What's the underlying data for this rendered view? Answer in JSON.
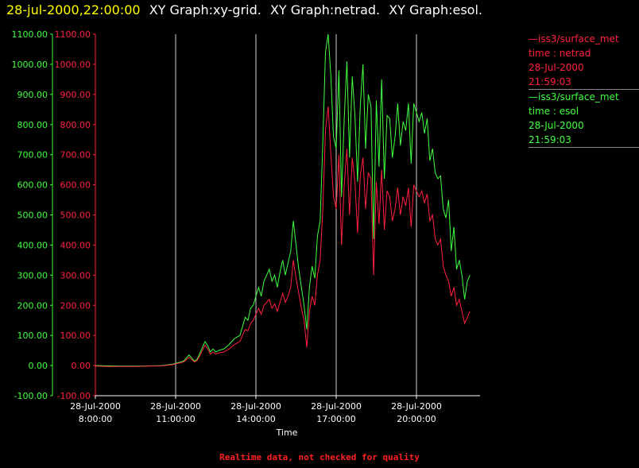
{
  "header": {
    "timestamp": "28-jul-2000,22:00:00",
    "graphs": [
      "XY Graph:xy-grid.",
      "XY Graph:netrad.",
      "XY Graph:esol."
    ]
  },
  "legend": [
    {
      "source": "—iss3/surface_met",
      "var": "time : netrad",
      "date": "28-Jul-2000",
      "time": "21:59:03",
      "color": "#ff2040"
    },
    {
      "source": "—iss3/surface_met",
      "var": "time : esol",
      "date": "28-Jul-2000",
      "time": "21:59:03",
      "color": "#40ff40"
    }
  ],
  "footer": {
    "note": "Realtime data, not checked for quality"
  },
  "chart_data": {
    "type": "line",
    "xlabel": "Time",
    "x_ticks": [
      {
        "date": "28-Jul-2000",
        "time": "8:00:00",
        "hour": 8
      },
      {
        "date": "28-Jul-2000",
        "time": "11:00:00",
        "hour": 11
      },
      {
        "date": "28-Jul-2000",
        "time": "14:00:00",
        "hour": 14
      },
      {
        "date": "28-Jul-2000",
        "time": "17:00:00",
        "hour": 17
      },
      {
        "date": "28-Jul-2000",
        "time": "20:00:00",
        "hour": 20
      }
    ],
    "xlim": [
      8.0,
      22.0
    ],
    "ylim": [
      -100,
      1100
    ],
    "y_ticks": [
      "1100.00",
      "1000.00",
      "900.00",
      "800.00",
      "700.00",
      "600.00",
      "500.00",
      "400.00",
      "300.00",
      "200.00",
      "100.00",
      "0.00",
      "-100.00"
    ],
    "y_axis_colors": {
      "left": "#40ff40",
      "right": "#ff2040"
    },
    "grid": "vertical",
    "series": [
      {
        "color": "#40ff40",
        "x": [
          8.0,
          8.5,
          9.0,
          9.5,
          10.0,
          10.5,
          10.9,
          11.1,
          11.3,
          11.5,
          11.6,
          11.7,
          11.8,
          11.9,
          12.0,
          12.1,
          12.2,
          12.3,
          12.4,
          12.5,
          12.6,
          12.8,
          13.0,
          13.2,
          13.4,
          13.5,
          13.6,
          13.7,
          13.8,
          13.9,
          14.0,
          14.1,
          14.2,
          14.3,
          14.4,
          14.5,
          14.6,
          14.7,
          14.8,
          14.9,
          15.0,
          15.1,
          15.2,
          15.3,
          15.4,
          15.5,
          15.6,
          15.7,
          15.8,
          15.9,
          16.0,
          16.1,
          16.2,
          16.3,
          16.4,
          16.5,
          16.6,
          16.7,
          16.8,
          16.9,
          17.0,
          17.1,
          17.2,
          17.3,
          17.4,
          17.5,
          17.6,
          17.7,
          17.8,
          17.9,
          18.0,
          18.1,
          18.2,
          18.3,
          18.4,
          18.5,
          18.6,
          18.7,
          18.8,
          18.9,
          19.0,
          19.1,
          19.2,
          19.3,
          19.4,
          19.5,
          19.6,
          19.7,
          19.8,
          19.9,
          20.0,
          20.1,
          20.2,
          20.3,
          20.4,
          20.5,
          20.6,
          20.7,
          20.8,
          20.9,
          21.0,
          21.1,
          21.2,
          21.3,
          21.4,
          21.5,
          21.6,
          21.7,
          21.8,
          21.9,
          22.0
        ],
        "y": [
          0,
          -1,
          -2,
          -2,
          -1,
          0,
          5,
          10,
          15,
          35,
          25,
          15,
          20,
          40,
          60,
          80,
          65,
          45,
          55,
          45,
          50,
          55,
          70,
          90,
          100,
          130,
          160,
          150,
          190,
          200,
          230,
          260,
          230,
          280,
          300,
          320,
          280,
          300,
          260,
          310,
          350,
          300,
          340,
          380,
          480,
          400,
          320,
          260,
          200,
          120,
          260,
          330,
          290,
          430,
          480,
          740,
          1040,
          1100,
          960,
          760,
          720,
          980,
          560,
          820,
          1010,
          690,
          960,
          830,
          610,
          860,
          1000,
          720,
          900,
          860,
          420,
          880,
          660,
          950,
          620,
          830,
          820,
          690,
          760,
          870,
          730,
          810,
          780,
          870,
          670,
          870,
          840,
          810,
          840,
          770,
          820,
          680,
          720,
          640,
          620,
          630,
          520,
          490,
          550,
          380,
          460,
          320,
          350,
          300,
          220,
          280,
          300
        ]
      },
      {
        "color": "#ff2040",
        "x": [
          8.0,
          8.5,
          9.0,
          9.5,
          10.0,
          10.5,
          10.9,
          11.1,
          11.3,
          11.5,
          11.6,
          11.7,
          11.8,
          11.9,
          12.0,
          12.1,
          12.2,
          12.3,
          12.4,
          12.5,
          12.6,
          12.8,
          13.0,
          13.2,
          13.4,
          13.5,
          13.6,
          13.7,
          13.8,
          13.9,
          14.0,
          14.1,
          14.2,
          14.3,
          14.4,
          14.5,
          14.6,
          14.7,
          14.8,
          14.9,
          15.0,
          15.1,
          15.2,
          15.3,
          15.4,
          15.5,
          15.6,
          15.7,
          15.8,
          15.9,
          16.0,
          16.1,
          16.2,
          16.3,
          16.4,
          16.5,
          16.6,
          16.7,
          16.8,
          16.9,
          17.0,
          17.1,
          17.2,
          17.3,
          17.4,
          17.5,
          17.6,
          17.7,
          17.8,
          17.9,
          18.0,
          18.1,
          18.2,
          18.3,
          18.4,
          18.5,
          18.6,
          18.7,
          18.8,
          18.9,
          19.0,
          19.1,
          19.2,
          19.3,
          19.4,
          19.5,
          19.6,
          19.7,
          19.8,
          19.9,
          20.0,
          20.1,
          20.2,
          20.3,
          20.4,
          20.5,
          20.6,
          20.7,
          20.8,
          20.9,
          21.0,
          21.1,
          21.2,
          21.3,
          21.4,
          21.5,
          21.6,
          21.7,
          21.8,
          21.9,
          22.0
        ],
        "y": [
          -2,
          -3,
          -3,
          -3,
          -2,
          -1,
          3,
          8,
          12,
          28,
          20,
          12,
          16,
          32,
          50,
          68,
          55,
          38,
          45,
          38,
          42,
          45,
          55,
          70,
          80,
          100,
          120,
          115,
          140,
          150,
          170,
          190,
          170,
          200,
          210,
          220,
          190,
          205,
          180,
          210,
          240,
          210,
          230,
          260,
          350,
          290,
          240,
          190,
          150,
          60,
          180,
          230,
          200,
          300,
          350,
          520,
          780,
          860,
          700,
          560,
          520,
          700,
          400,
          600,
          720,
          500,
          690,
          610,
          440,
          630,
          690,
          520,
          640,
          620,
          300,
          610,
          470,
          650,
          450,
          580,
          560,
          480,
          520,
          590,
          500,
          560,
          530,
          590,
          460,
          600,
          580,
          560,
          580,
          540,
          570,
          480,
          500,
          420,
          400,
          420,
          330,
          300,
          280,
          230,
          260,
          200,
          220,
          180,
          140,
          160,
          180
        ]
      }
    ]
  }
}
